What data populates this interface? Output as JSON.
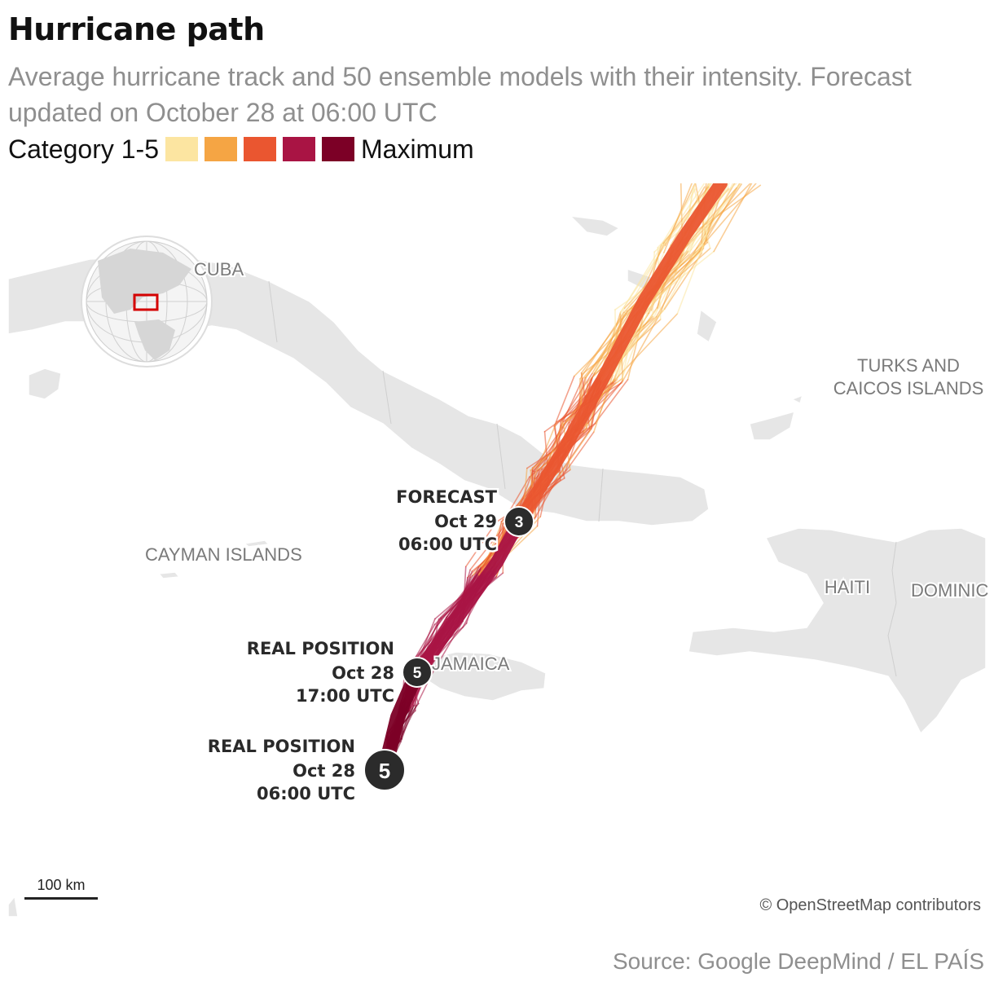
{
  "title": "Hurricane path",
  "subtitle": "Average hurricane track and 50 ensemble models with their intensity. Forecast updated on October 28 at 06:00 UTC",
  "legend": {
    "left_label": "Category 1-5",
    "right_label": "Maximum",
    "colors": [
      "#fce5a1",
      "#f5a544",
      "#ea5630",
      "#a91444",
      "#7c0026"
    ]
  },
  "map": {
    "places": {
      "cuba": "CUBA",
      "cayman": "CAYMAN ISLANDS",
      "turks_line1": "TURKS AND",
      "turks_line2": "CAICOS ISLANDS",
      "haiti": "HAITI",
      "dominican": "DOMINIC",
      "jamaica": "JAMAICA"
    },
    "markers": [
      {
        "category": "3",
        "l1": "FORECAST",
        "l2": "Oct 29",
        "l3": "06:00 UTC"
      },
      {
        "category": "5",
        "l1": "REAL POSITION",
        "l2": "Oct 28",
        "l3": "17:00 UTC"
      },
      {
        "category": "5",
        "l1": "REAL POSITION",
        "l2": "Oct 28",
        "l3": "06:00 UTC"
      }
    ],
    "land_color": "#e6e6e6",
    "track_colors": [
      "#fce5a1",
      "#f5a544",
      "#ea5630",
      "#a91444",
      "#7c0026"
    ]
  },
  "scale_label": "100 km",
  "attribution": "© OpenStreetMap contributors",
  "source": "Source: Google DeepMind / EL PAÍS"
}
